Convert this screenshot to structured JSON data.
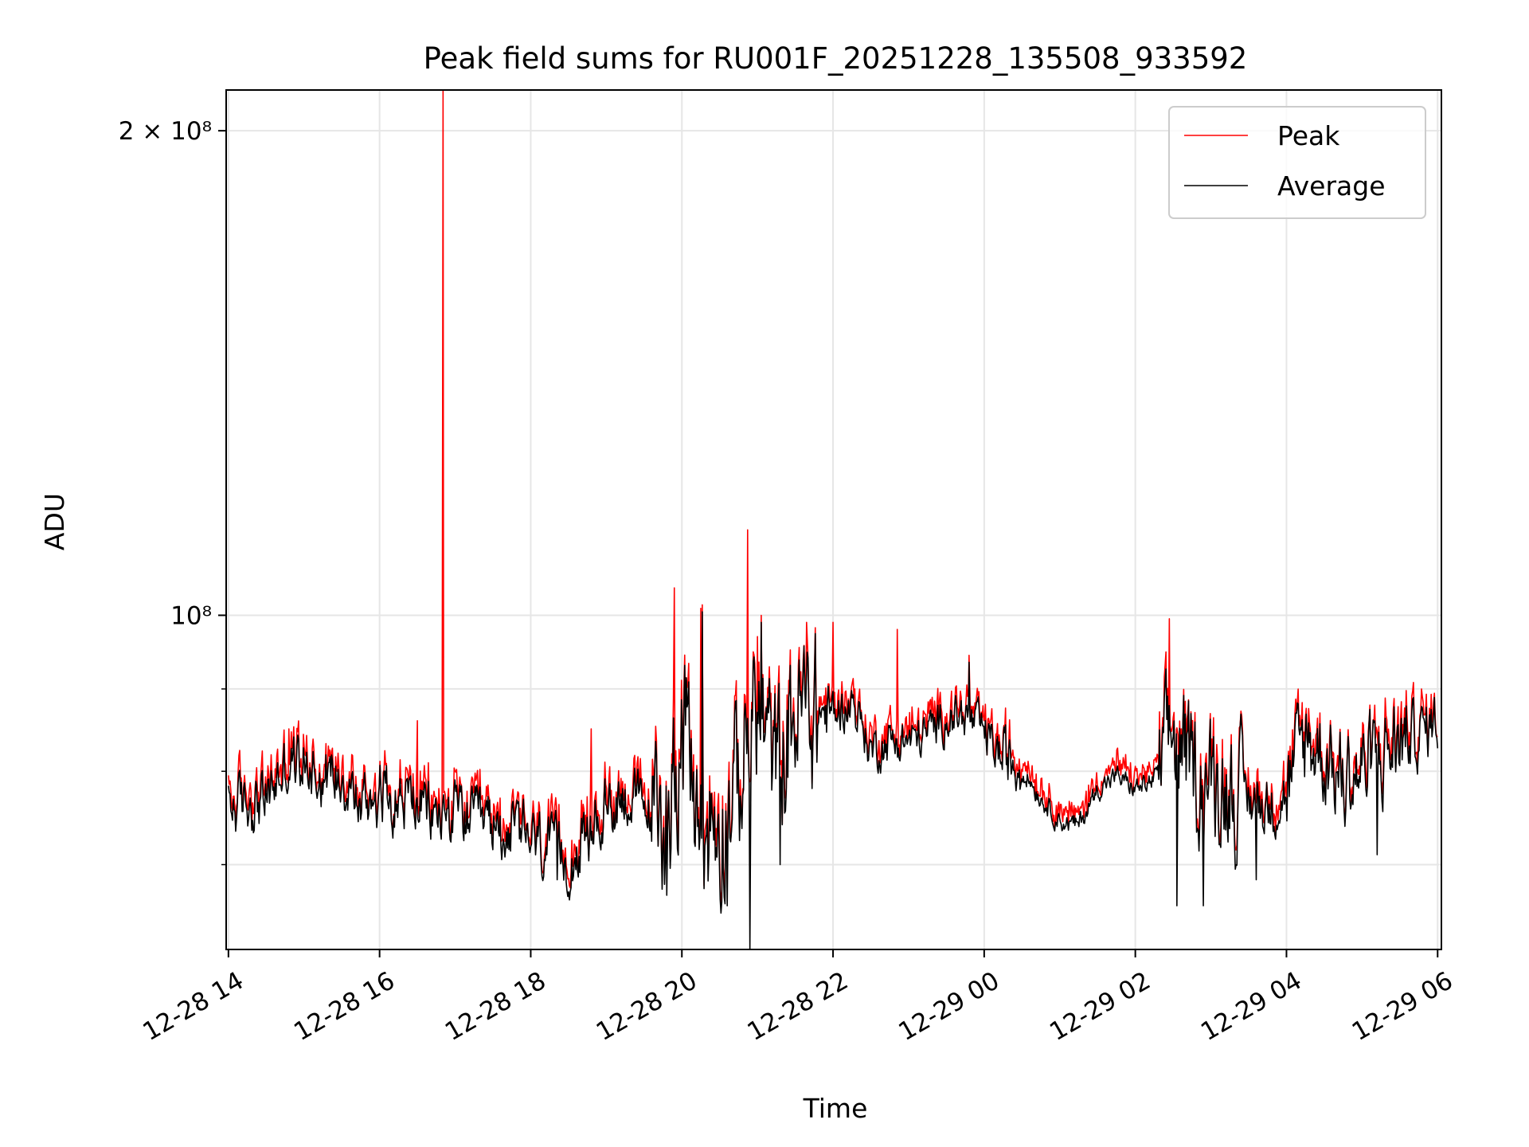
{
  "chart_data": {
    "type": "line",
    "title": "Peak field sums for RU001F_20251228_135508_933592",
    "xlabel": "Time",
    "ylabel": "ADU",
    "yscale": "log",
    "ylim": [
      62000000,
      212000000
    ],
    "xlim_hours": [
      -0.03,
      16.05
    ],
    "x_unit": "hours since 12-28 14:00",
    "grid": true,
    "legend_position": "upper right",
    "x_ticks": [
      {
        "value": 0,
        "label": "12-28 14"
      },
      {
        "value": 2,
        "label": "12-28 16"
      },
      {
        "value": 4,
        "label": "12-28 18"
      },
      {
        "value": 6,
        "label": "12-28 20"
      },
      {
        "value": 8,
        "label": "12-28 22"
      },
      {
        "value": 10,
        "label": "12-29 00"
      },
      {
        "value": 12,
        "label": "12-29 02"
      },
      {
        "value": 14,
        "label": "12-29 04"
      },
      {
        "value": 16,
        "label": "12-29 06"
      }
    ],
    "y_ticks": [
      {
        "value": 200000000,
        "label": "2 × 10⁸"
      },
      {
        "value": 100000000,
        "label": "10⁸"
      }
    ],
    "y_minor_ticks": [
      70000000,
      80000000,
      90000000
    ],
    "series": [
      {
        "name": "Peak",
        "color": "#ff0000",
        "legend_label": "Peak"
      },
      {
        "name": "Average",
        "color": "#000000",
        "legend_label": "Average"
      }
    ],
    "average_profile": [
      [
        0.0,
        76000000
      ],
      [
        0.25,
        76500000
      ],
      [
        0.5,
        77000000
      ],
      [
        0.75,
        80500000
      ],
      [
        1.0,
        81500000
      ],
      [
        1.25,
        79500000
      ],
      [
        1.5,
        80000000
      ],
      [
        1.75,
        76000000
      ],
      [
        2.0,
        78000000
      ],
      [
        2.25,
        77000000
      ],
      [
        2.5,
        76500000
      ],
      [
        2.75,
        75000000
      ],
      [
        3.0,
        75500000
      ],
      [
        3.25,
        74500000
      ],
      [
        3.5,
        74000000
      ],
      [
        3.75,
        73500000
      ],
      [
        4.0,
        72500000
      ],
      [
        4.25,
        71500000
      ],
      [
        4.5,
        70500000
      ],
      [
        4.75,
        72500000
      ],
      [
        5.0,
        76000000
      ],
      [
        5.25,
        77500000
      ],
      [
        5.5,
        76000000
      ],
      [
        5.75,
        73500000
      ],
      [
        6.0,
        86000000
      ],
      [
        6.25,
        73000000
      ],
      [
        6.5,
        75000000
      ],
      [
        6.75,
        79000000
      ],
      [
        7.0,
        88000000
      ],
      [
        7.25,
        80000000
      ],
      [
        7.5,
        87000000
      ],
      [
        7.75,
        87500000
      ],
      [
        8.0,
        86500000
      ],
      [
        8.25,
        88500000
      ],
      [
        8.5,
        82500000
      ],
      [
        8.75,
        83500000
      ],
      [
        9.0,
        83500000
      ],
      [
        9.25,
        84500000
      ],
      [
        9.5,
        86500000
      ],
      [
        9.75,
        86500000
      ],
      [
        10.0,
        84500000
      ],
      [
        10.25,
        81500000
      ],
      [
        10.5,
        80500000
      ],
      [
        10.75,
        77000000
      ],
      [
        11.0,
        74500000
      ],
      [
        11.25,
        74000000
      ],
      [
        11.5,
        78000000
      ],
      [
        11.75,
        79500000
      ],
      [
        12.0,
        78000000
      ],
      [
        12.25,
        79000000
      ],
      [
        12.5,
        84500000
      ],
      [
        12.75,
        80000000
      ],
      [
        13.0,
        79000000
      ],
      [
        13.25,
        78500000
      ],
      [
        13.5,
        77000000
      ],
      [
        13.75,
        76000000
      ],
      [
        14.0,
        77500000
      ],
      [
        14.25,
        84000000
      ],
      [
        14.5,
        82000000
      ],
      [
        14.75,
        79000000
      ],
      [
        15.0,
        80000000
      ],
      [
        15.25,
        82000000
      ],
      [
        15.5,
        83500000
      ],
      [
        15.75,
        84500000
      ],
      [
        16.0,
        86000000
      ]
    ],
    "spikes_peak": [
      [
        2.84,
        212000000
      ],
      [
        6.87,
        113000000
      ],
      [
        5.9,
        104000000
      ],
      [
        6.25,
        101000000
      ],
      [
        12.45,
        99500000
      ],
      [
        7.65,
        99000000
      ],
      [
        8.0,
        99000000
      ],
      [
        8.85,
        98000000
      ],
      [
        7.0,
        97000000
      ],
      [
        2.5,
        86000000
      ],
      [
        0.8,
        85000000
      ],
      [
        4.8,
        85000000
      ]
    ],
    "spikes_average": [
      [
        6.9,
        62000000
      ],
      [
        5.8,
        67000000
      ],
      [
        6.27,
        100500000
      ],
      [
        7.05,
        99000000
      ],
      [
        12.55,
        66000000
      ],
      [
        12.9,
        66000000
      ],
      [
        4.35,
        68500000
      ],
      [
        13.6,
        68500000
      ],
      [
        6.6,
        66000000
      ],
      [
        7.3,
        70000000
      ],
      [
        9.8,
        93500000
      ],
      [
        15.2,
        71000000
      ]
    ]
  }
}
